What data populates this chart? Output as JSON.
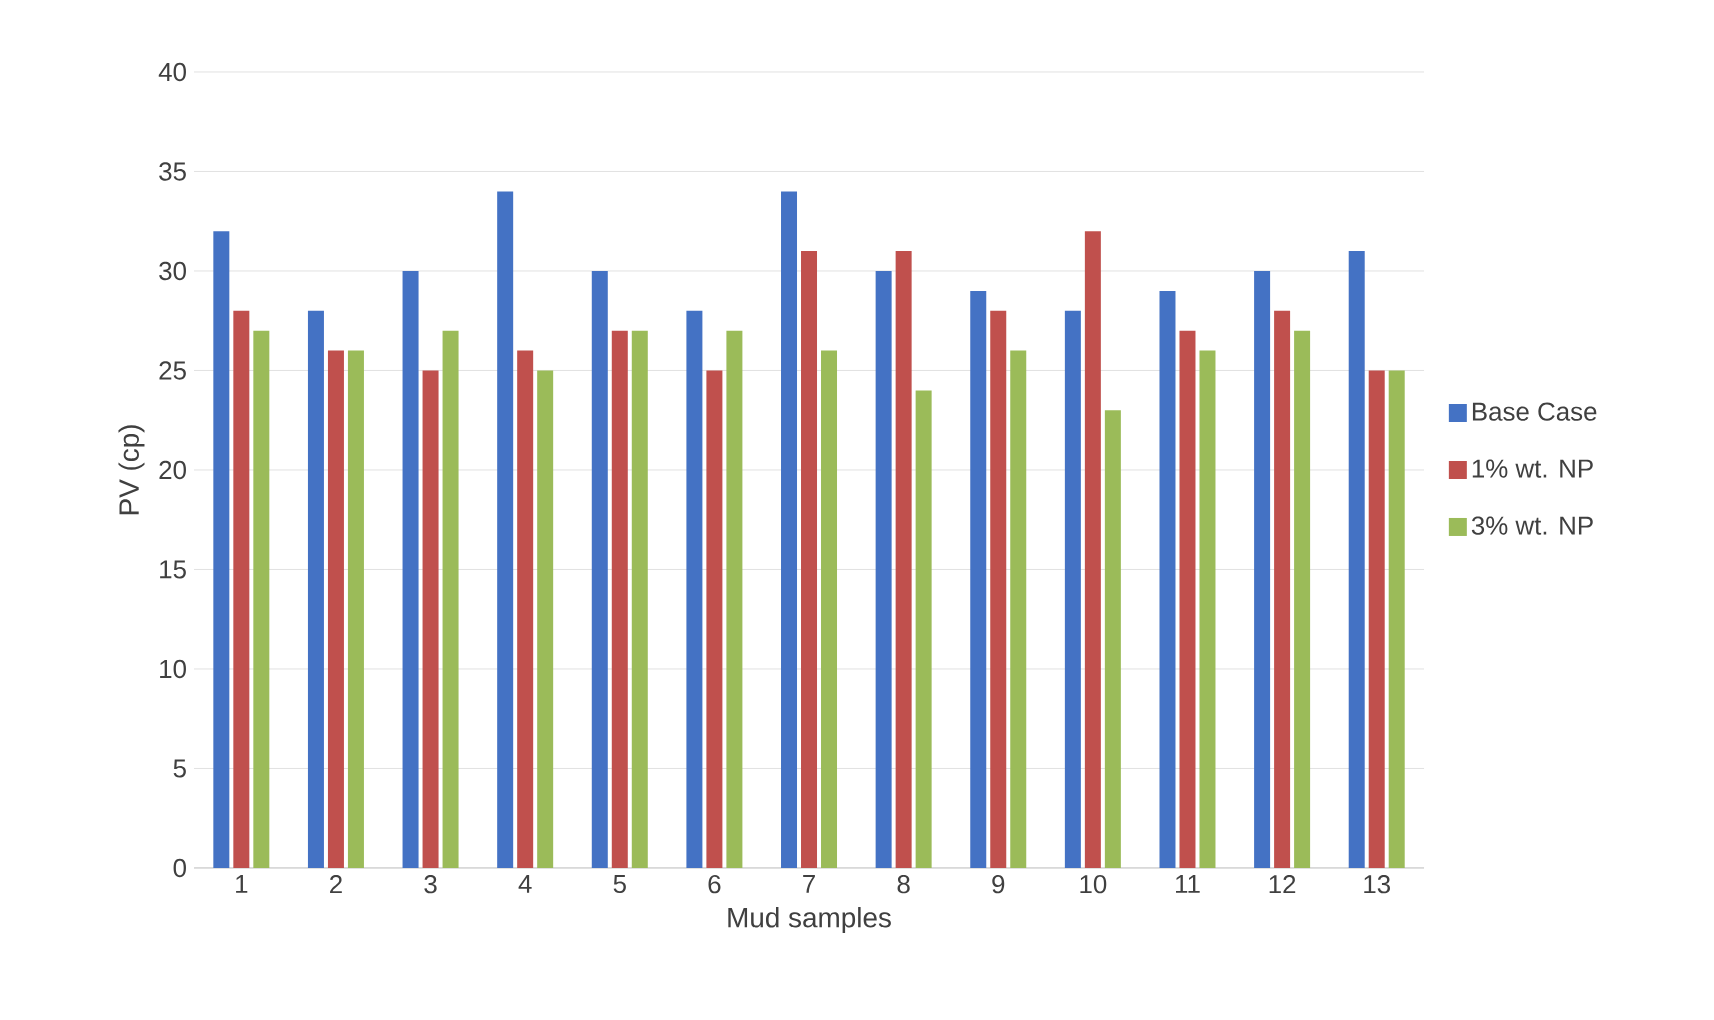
{
  "chart_data": {
    "type": "bar",
    "xlabel": "Mud samples",
    "ylabel": "PV (cp)",
    "categories": [
      "1",
      "2",
      "3",
      "4",
      "5",
      "6",
      "7",
      "8",
      "9",
      "10",
      "11",
      "12",
      "13"
    ],
    "series": [
      {
        "name": "Base Case",
        "color": "#4472c4",
        "values": [
          32,
          28,
          30,
          34,
          30,
          28,
          34,
          30,
          29,
          28,
          29,
          30,
          31
        ]
      },
      {
        "name": "1% wt. NP",
        "color": "#c0504d",
        "values": [
          28,
          26,
          25,
          26,
          27,
          25,
          31,
          31,
          28,
          32,
          27,
          28,
          25
        ]
      },
      {
        "name": "3% wt. NP",
        "color": "#9bbb59",
        "values": [
          27,
          26,
          27,
          25,
          27,
          27,
          26,
          24,
          26,
          23,
          26,
          27,
          25
        ]
      }
    ],
    "ylim": [
      0,
      40
    ],
    "yticks": [
      0,
      5,
      10,
      15,
      20,
      25,
      30,
      35,
      40
    ],
    "grid": "y",
    "legend": "right"
  }
}
